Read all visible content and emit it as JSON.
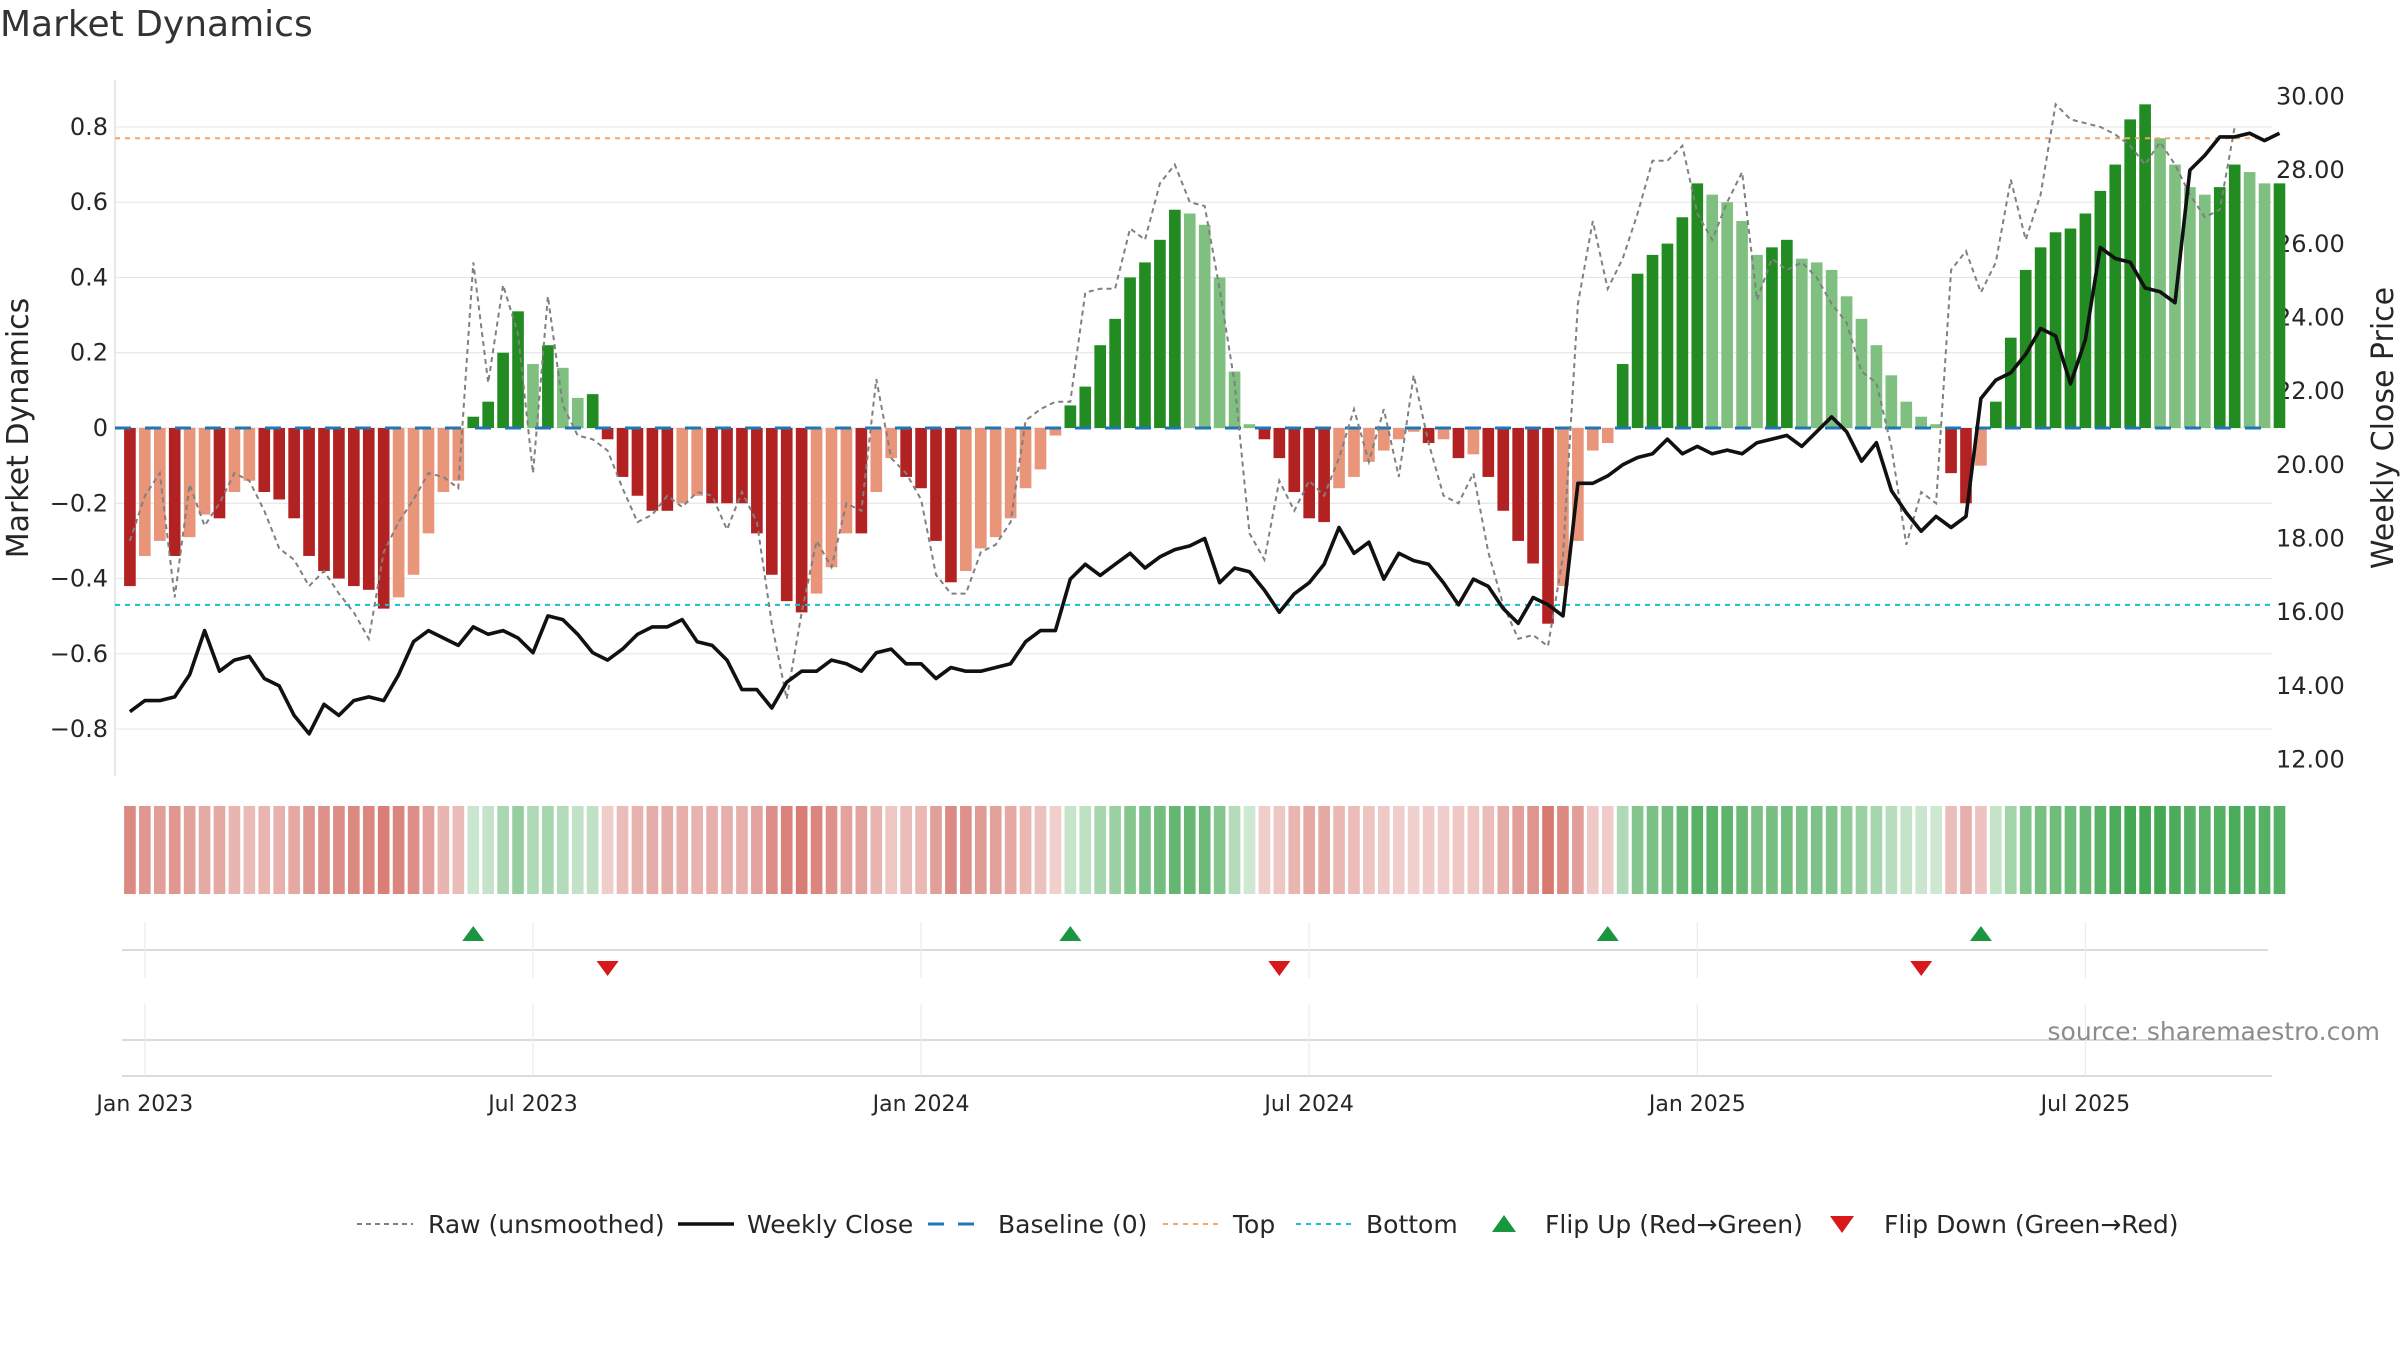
{
  "title": "Market Dynamics",
  "source": "source: sharemaestro.com",
  "colors": {
    "strong_green": "#228b22",
    "light_green": "#7fbf7f",
    "strong_red": "#b22222",
    "light_red": "#e8957a",
    "close_line": "#111111",
    "raw_line": "#808080",
    "baseline": "#1f77b4",
    "top_line": "#f0a868",
    "bottom_line": "#17becf",
    "flip_up": "#1a9641",
    "flip_down": "#d7191c",
    "grid": "#e6e6e6"
  },
  "chart_data": {
    "type": "bar+line",
    "title": "Market Dynamics",
    "ylabel_left": "Market Dynamics",
    "ylabel_right": "Weekly Close Price",
    "ylim_left": [
      -0.93,
      0.93
    ],
    "ylim_right": [
      11.5,
      30.5
    ],
    "yticks_left": [
      {
        "value": -0.8,
        "label": "−0.8"
      },
      {
        "value": -0.6,
        "label": "−0.6"
      },
      {
        "value": -0.4,
        "label": "−0.4"
      },
      {
        "value": -0.2,
        "label": "−0.2"
      },
      {
        "value": 0,
        "label": "0"
      },
      {
        "value": 0.2,
        "label": "0.2"
      },
      {
        "value": 0.4,
        "label": "0.4"
      },
      {
        "value": 0.6,
        "label": "0.6"
      },
      {
        "value": 0.8,
        "label": "0.8"
      }
    ],
    "yticks_right": [
      {
        "value": 12,
        "label": "12.00"
      },
      {
        "value": 14,
        "label": "14.00"
      },
      {
        "value": 16,
        "label": "16.00"
      },
      {
        "value": 18,
        "label": "18.00"
      },
      {
        "value": 20,
        "label": "20.00"
      },
      {
        "value": 22,
        "label": "22.00"
      },
      {
        "value": 24,
        "label": "24.00"
      },
      {
        "value": 26,
        "label": "26.00"
      },
      {
        "value": 28,
        "label": "28.00"
      },
      {
        "value": 30,
        "label": "30.00"
      }
    ],
    "x_start_date": "2022-12-25",
    "x_step_days": 7,
    "x_range_weeks": [
      -1.0,
      143.5
    ],
    "xticks": [
      {
        "week": 1,
        "label": "Jan 2023"
      },
      {
        "week": 27,
        "label": "Jul 2023"
      },
      {
        "week": 53,
        "label": "Jan 2024"
      },
      {
        "week": 79,
        "label": "Jul 2024"
      },
      {
        "week": 105,
        "label": "Jan 2025"
      },
      {
        "week": 131,
        "label": "Jul 2025"
      }
    ],
    "top_threshold": 0.77,
    "bottom_threshold": -0.47,
    "baseline": 0,
    "smoothed": [
      -0.42,
      -0.34,
      -0.3,
      -0.34,
      -0.29,
      -0.23,
      -0.24,
      -0.17,
      -0.14,
      -0.17,
      -0.19,
      -0.24,
      -0.34,
      -0.38,
      -0.4,
      -0.42,
      -0.43,
      -0.48,
      -0.45,
      -0.39,
      -0.28,
      -0.17,
      -0.14,
      0.03,
      0.07,
      0.2,
      0.31,
      0.17,
      0.22,
      0.16,
      0.08,
      0.09,
      -0.03,
      -0.13,
      -0.18,
      -0.22,
      -0.22,
      -0.2,
      -0.18,
      -0.2,
      -0.2,
      -0.2,
      -0.28,
      -0.39,
      -0.46,
      -0.49,
      -0.44,
      -0.37,
      -0.28,
      -0.28,
      -0.17,
      -0.08,
      -0.13,
      -0.16,
      -0.3,
      -0.41,
      -0.38,
      -0.32,
      -0.29,
      -0.24,
      -0.16,
      -0.11,
      -0.02,
      0.06,
      0.11,
      0.22,
      0.29,
      0.4,
      0.44,
      0.5,
      0.58,
      0.57,
      0.54,
      0.4,
      0.15,
      0.01,
      -0.03,
      -0.08,
      -0.17,
      -0.24,
      -0.25,
      -0.16,
      -0.13,
      -0.09,
      -0.06,
      -0.03,
      -0.01,
      -0.04,
      -0.03,
      -0.08,
      -0.07,
      -0.13,
      -0.22,
      -0.3,
      -0.36,
      -0.52,
      -0.42,
      -0.3,
      -0.06,
      -0.04,
      0.17,
      0.41,
      0.46,
      0.49,
      0.56,
      0.65,
      0.62,
      0.6,
      0.55,
      0.46,
      0.48,
      0.5,
      0.45,
      0.44,
      0.42,
      0.35,
      0.29,
      0.22,
      0.14,
      0.07,
      0.03,
      0.01,
      -0.12,
      -0.2,
      -0.1,
      0.07,
      0.24,
      0.42,
      0.48,
      0.52,
      0.53,
      0.57,
      0.63,
      0.7,
      0.82,
      0.86,
      0.77,
      0.7,
      0.64,
      0.62,
      0.64,
      0.7,
      0.68,
      0.65,
      0.65
    ],
    "raw": [
      -0.3,
      -0.18,
      -0.12,
      -0.45,
      -0.15,
      -0.26,
      -0.2,
      -0.12,
      -0.14,
      -0.22,
      -0.32,
      -0.35,
      -0.42,
      -0.38,
      -0.44,
      -0.49,
      -0.56,
      -0.33,
      -0.25,
      -0.19,
      -0.12,
      -0.13,
      -0.16,
      0.44,
      0.12,
      0.38,
      0.25,
      -0.12,
      0.35,
      0.06,
      -0.02,
      -0.03,
      -0.06,
      -0.16,
      -0.25,
      -0.23,
      -0.18,
      -0.21,
      -0.17,
      -0.18,
      -0.27,
      -0.17,
      -0.25,
      -0.52,
      -0.72,
      -0.49,
      -0.3,
      -0.37,
      -0.2,
      -0.22,
      0.13,
      -0.08,
      -0.12,
      -0.19,
      -0.39,
      -0.44,
      -0.44,
      -0.33,
      -0.31,
      -0.25,
      0.02,
      0.05,
      0.07,
      0.07,
      0.36,
      0.37,
      0.37,
      0.53,
      0.5,
      0.65,
      0.7,
      0.6,
      0.59,
      0.37,
      0.12,
      -0.28,
      -0.35,
      -0.14,
      -0.22,
      -0.14,
      -0.18,
      -0.08,
      0.05,
      -0.09,
      0.05,
      -0.13,
      0.14,
      -0.04,
      -0.18,
      -0.2,
      -0.12,
      -0.33,
      -0.47,
      -0.56,
      -0.55,
      -0.58,
      -0.34,
      0.33,
      0.55,
      0.37,
      0.45,
      0.57,
      0.71,
      0.71,
      0.75,
      0.57,
      0.5,
      0.6,
      0.68,
      0.34,
      0.45,
      0.42,
      0.44,
      0.4,
      0.33,
      0.28,
      0.15,
      0.12,
      -0.05,
      -0.31,
      -0.17,
      -0.2,
      0.42,
      0.47,
      0.36,
      0.44,
      0.66,
      0.5,
      0.62,
      0.86,
      0.82,
      0.81,
      0.8,
      0.78,
      0.75,
      0.7,
      0.76,
      0.7,
      0.62,
      0.56,
      0.58,
      0.8
    ],
    "close": [
      13.3,
      13.6,
      13.6,
      13.7,
      14.3,
      15.5,
      14.4,
      14.7,
      14.8,
      14.2,
      14.0,
      13.2,
      12.7,
      13.5,
      13.2,
      13.6,
      13.7,
      13.6,
      14.3,
      15.2,
      15.5,
      15.3,
      15.1,
      15.6,
      15.4,
      15.5,
      15.3,
      14.9,
      15.9,
      15.8,
      15.4,
      14.9,
      14.7,
      15.0,
      15.4,
      15.6,
      15.6,
      15.8,
      15.2,
      15.1,
      14.7,
      13.9,
      13.9,
      13.4,
      14.1,
      14.4,
      14.4,
      14.7,
      14.6,
      14.4,
      14.9,
      15.0,
      14.6,
      14.6,
      14.2,
      14.5,
      14.4,
      14.4,
      14.5,
      14.6,
      15.2,
      15.5,
      15.5,
      16.9,
      17.3,
      17.0,
      17.3,
      17.6,
      17.2,
      17.5,
      17.7,
      17.8,
      18.0,
      16.8,
      17.2,
      17.1,
      16.6,
      16.0,
      16.5,
      16.8,
      17.3,
      18.3,
      17.6,
      17.9,
      16.9,
      17.6,
      17.4,
      17.3,
      16.8,
      16.2,
      16.9,
      16.7,
      16.1,
      15.7,
      16.4,
      16.2,
      15.9,
      19.5,
      19.5,
      19.7,
      20.0,
      20.2,
      20.3,
      20.7,
      20.3,
      20.5,
      20.3,
      20.4,
      20.3,
      20.6,
      20.7,
      20.8,
      20.5,
      20.9,
      21.3,
      20.9,
      20.1,
      20.6,
      19.3,
      18.7,
      18.2,
      18.6,
      18.3,
      18.6,
      21.8,
      22.3,
      22.5,
      23.0,
      23.7,
      23.5,
      22.2,
      23.4,
      25.9,
      25.6,
      25.5,
      24.8,
      24.7,
      24.4,
      28.0,
      28.4,
      28.9,
      28.9,
      29.0,
      28.8,
      29.0
    ],
    "flip_up_weeks": [
      23,
      63,
      99,
      124
    ],
    "flip_down_weeks": [
      32,
      77,
      120
    ],
    "legend": [
      {
        "key": "raw",
        "label": "Raw (unsmoothed)"
      },
      {
        "key": "close",
        "label": "Weekly Close"
      },
      {
        "key": "baseline",
        "label": "Baseline (0)"
      },
      {
        "key": "top",
        "label": "Top"
      },
      {
        "key": "bottom",
        "label": "Bottom"
      },
      {
        "key": "flip_up",
        "label": "Flip Up (Red→Green)"
      },
      {
        "key": "flip_down",
        "label": "Flip Down (Green→Red)"
      }
    ]
  }
}
